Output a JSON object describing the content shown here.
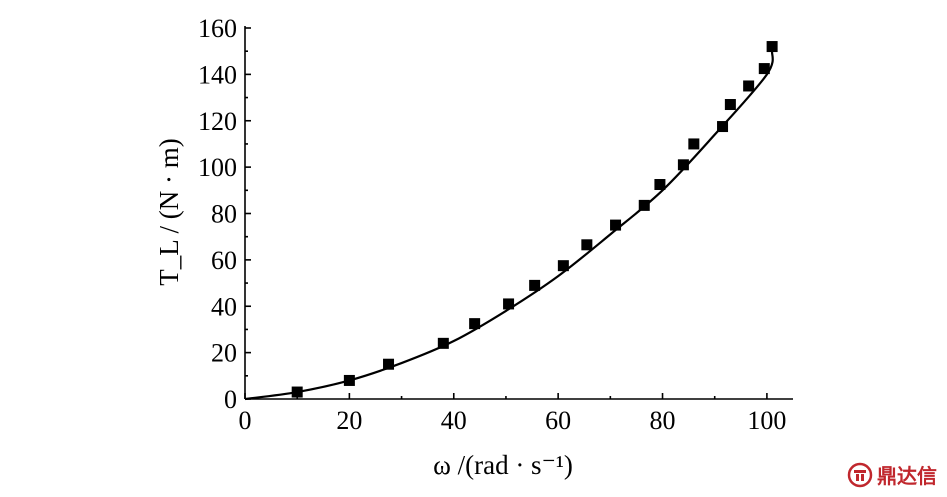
{
  "chart_data": {
    "type": "scatter",
    "xlabel": "ω /(rad · s⁻¹)",
    "ylabel": "T_L / (N · m)",
    "xlim": [
      0,
      105
    ],
    "ylim": [
      0,
      160
    ],
    "xticks": [
      0,
      20,
      40,
      60,
      80,
      100
    ],
    "yticks": [
      0,
      20,
      40,
      60,
      80,
      100,
      120,
      140,
      160
    ],
    "grid": false,
    "series": [
      {
        "kind": "points",
        "marker": "square",
        "x": [
          10,
          20,
          27.5,
          38,
          44,
          50.5,
          55.5,
          61,
          65.5,
          71,
          76.5,
          79.5,
          84,
          86,
          91.5,
          93,
          96.5,
          99.5,
          101
        ],
        "y": [
          3,
          8,
          15,
          24,
          32.5,
          41,
          49,
          57.5,
          66.5,
          75,
          83.5,
          92.5,
          101,
          110,
          117.5,
          127,
          135,
          142.5,
          152
        ]
      },
      {
        "kind": "fit-curve",
        "x": [
          0,
          10,
          20,
          30,
          40,
          50,
          60,
          70,
          80,
          90,
          100,
          101
        ],
        "y": [
          0,
          3,
          8,
          15.5,
          25,
          38,
          53,
          71,
          90,
          114,
          140,
          150
        ]
      }
    ]
  },
  "watermark": {
    "text": "鼎达信",
    "color": "#c0272d"
  }
}
